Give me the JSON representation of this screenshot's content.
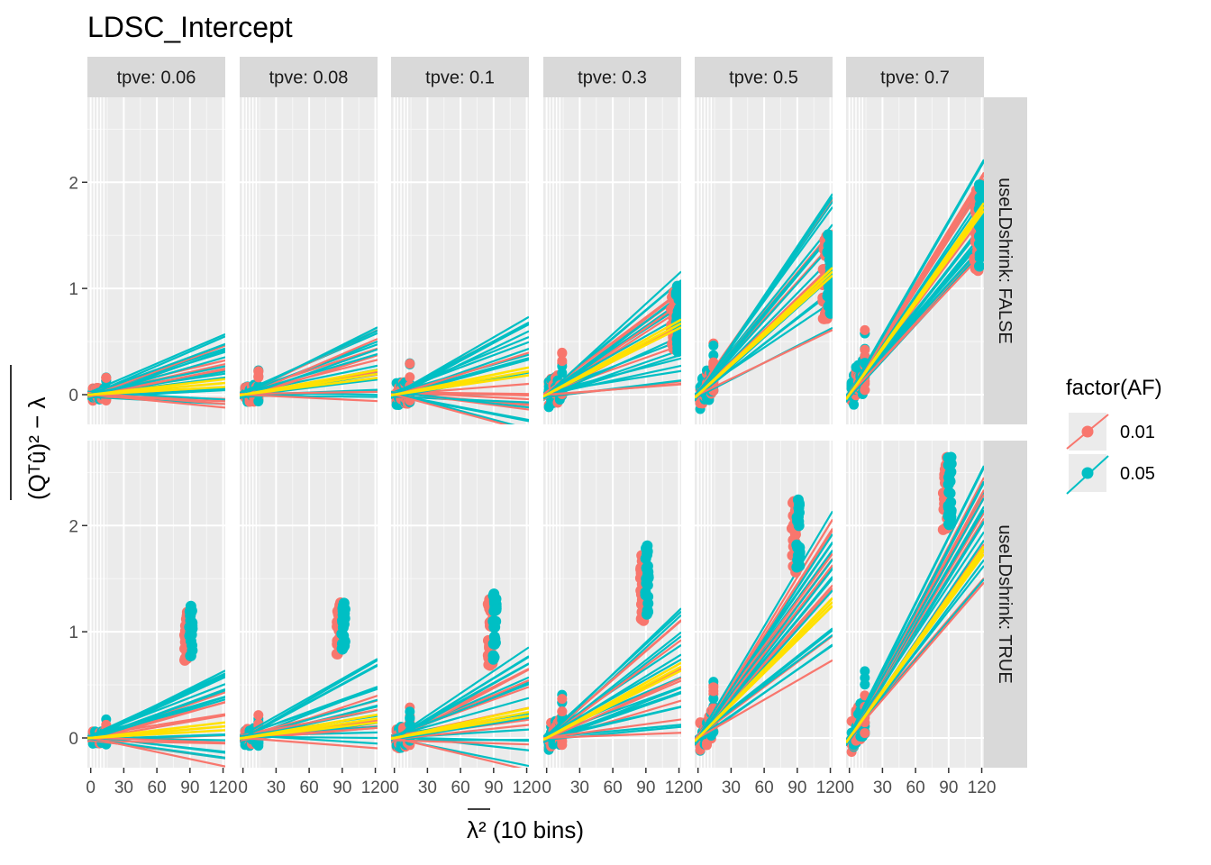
{
  "chart_data": {
    "type": "scatter",
    "title": "LDSC_Intercept",
    "xlabel": "λ² (10 bins)",
    "ylabel": "(Qᵀû)² − λ",
    "x_ticks": [
      0,
      30,
      60,
      90,
      120
    ],
    "x_tick_labels": [
      "0",
      "30",
      "60",
      "90",
      "120"
    ],
    "y_ticks": [
      0,
      1,
      2
    ],
    "y_tick_labels": [
      "0",
      "1",
      "2"
    ],
    "xlim": [
      -3,
      122
    ],
    "ylim": [
      -0.28,
      2.8
    ],
    "col_facets": [
      "tpve: 0.06",
      "tpve: 0.08",
      "tpve: 0.1",
      "tpve: 0.3",
      "tpve: 0.5",
      "tpve: 0.7"
    ],
    "row_facets": [
      "useLDshrink: FALSE",
      "useLDshrink: TRUE"
    ],
    "legend": {
      "title": "factor(AF)",
      "position": "right",
      "entries": [
        {
          "label": "0.01",
          "color": "#F8766D"
        },
        {
          "label": "0.05",
          "color": "#00BFC4"
        }
      ]
    },
    "mean_line_color": "#FFE100",
    "panels": [
      {
        "row": 0,
        "col": 0,
        "slope_range": [
          -0.001,
          0.0045
        ],
        "mean_slope": 0.0009,
        "outlier_y": null,
        "outlier_mean": null
      },
      {
        "row": 0,
        "col": 1,
        "slope_range": [
          -0.0005,
          0.0052
        ],
        "mean_slope": 0.0016,
        "outlier_y": null,
        "outlier_mean": null
      },
      {
        "row": 0,
        "col": 2,
        "slope_range": [
          -0.0028,
          0.006
        ],
        "mean_slope": 0.0018,
        "outlier_y": null,
        "outlier_mean": null
      },
      {
        "row": 0,
        "col": 3,
        "slope_range": [
          0.0008,
          0.0095
        ],
        "mean_slope": 0.0055,
        "outlier_y": [
          0.35,
          0.98
        ],
        "outlier_mean": 0.65
      },
      {
        "row": 0,
        "col": 4,
        "slope_range": [
          0.005,
          0.0155
        ],
        "mean_slope": 0.0095,
        "outlier_y": [
          0.7,
          1.5
        ],
        "outlier_mean": 1.05
      },
      {
        "row": 0,
        "col": 5,
        "slope_range": [
          0.011,
          0.018
        ],
        "mean_slope": 0.0145,
        "outlier_y": [
          1.15,
          1.95
        ],
        "outlier_mean": 1.55
      },
      {
        "row": 1,
        "col": 0,
        "slope_range": [
          -0.0022,
          0.0052
        ],
        "mean_slope": 0.0009,
        "outlier_y": [
          0.72,
          1.2
        ],
        "outlier_mean": 0.95
      },
      {
        "row": 1,
        "col": 1,
        "slope_range": [
          -0.0008,
          0.006
        ],
        "mean_slope": 0.0015,
        "outlier_y": [
          0.77,
          1.29
        ],
        "outlier_mean": 1.0
      },
      {
        "row": 1,
        "col": 2,
        "slope_range": [
          -0.0025,
          0.007
        ],
        "mean_slope": 0.002,
        "outlier_y": [
          0.66,
          1.31
        ],
        "outlier_mean": 1.0
      },
      {
        "row": 1,
        "col": 3,
        "slope_range": [
          0.0004,
          0.01
        ],
        "mean_slope": 0.0055,
        "outlier_y": [
          1.07,
          1.76
        ],
        "outlier_mean": 1.4
      },
      {
        "row": 1,
        "col": 4,
        "slope_range": [
          0.006,
          0.0175
        ],
        "mean_slope": 0.0105,
        "outlier_y": [
          1.55,
          2.23
        ],
        "outlier_mean": 1.85
      },
      {
        "row": 1,
        "col": 5,
        "slope_range": [
          0.012,
          0.021
        ],
        "mean_slope": 0.0145,
        "outlier_y": [
          1.93,
          2.66
        ],
        "outlier_mean": 2.25
      }
    ],
    "grid": true
  }
}
